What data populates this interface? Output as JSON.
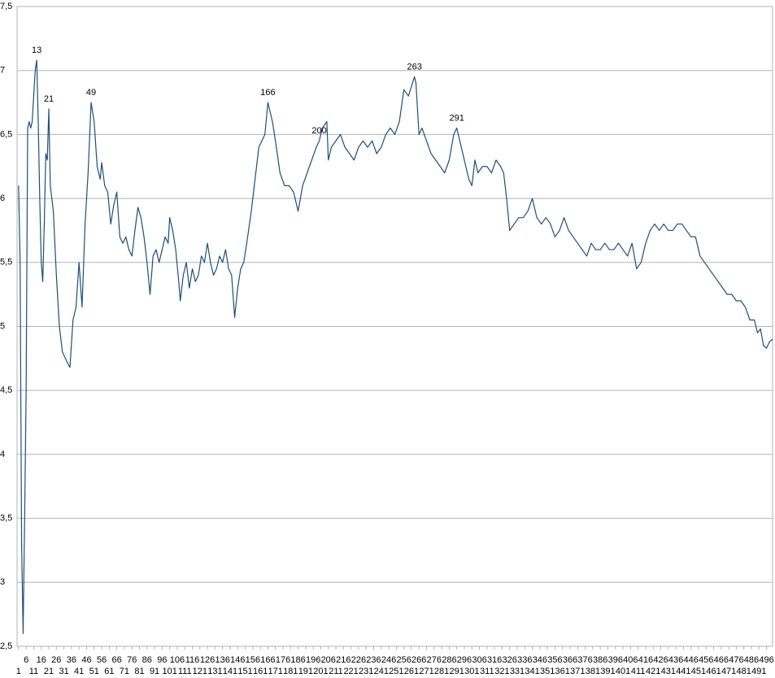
{
  "chart_data": {
    "type": "line",
    "color": "#1f4e79",
    "grid": true,
    "xlim": [
      0,
      500
    ],
    "ylim": [
      2.5,
      7.5
    ],
    "yticks": [
      {
        "value": 2.5,
        "label": "2,5"
      },
      3,
      {
        "value": 3.5,
        "label": "3,5"
      },
      4,
      {
        "value": 4.5,
        "label": "4,5"
      },
      5,
      {
        "value": 5.5,
        "label": "5,5"
      },
      6,
      {
        "value": 6.5,
        "label": "6,5"
      },
      7,
      {
        "value": 7.5,
        "label": "7,5"
      }
    ],
    "xticks": [
      1,
      6,
      11,
      16,
      21,
      26,
      31,
      36,
      41,
      46,
      51,
      56,
      61,
      66,
      71,
      76,
      81,
      86,
      91,
      96,
      101,
      106,
      111,
      116,
      121,
      126,
      131,
      136,
      141,
      146,
      151,
      156,
      161,
      166,
      171,
      176,
      181,
      186,
      191,
      196,
      201,
      206,
      211,
      216,
      221,
      226,
      231,
      236,
      241,
      246,
      251,
      256,
      261,
      266,
      271,
      276,
      281,
      286,
      291,
      296,
      301,
      306,
      311,
      316,
      321,
      326,
      331,
      336,
      341,
      346,
      351,
      356,
      361,
      366,
      371,
      376,
      381,
      386,
      391,
      396,
      401,
      406,
      411,
      416,
      421,
      426,
      431,
      436,
      441,
      446,
      451,
      456,
      461,
      466,
      471,
      476,
      481,
      486,
      491,
      496
    ],
    "x": [
      1,
      2,
      3,
      4,
      5,
      6,
      7,
      8,
      9,
      10,
      11,
      12,
      13,
      14,
      15,
      16,
      17,
      18,
      19,
      20,
      21,
      22,
      24,
      26,
      28,
      30,
      32,
      34,
      35,
      37,
      39,
      41,
      43,
      45,
      47,
      49,
      51,
      53,
      55,
      56,
      58,
      60,
      62,
      64,
      66,
      68,
      70,
      72,
      74,
      76,
      78,
      80,
      82,
      84,
      86,
      88,
      90,
      92,
      94,
      96,
      98,
      100,
      101,
      103,
      105,
      107,
      108,
      110,
      112,
      114,
      116,
      118,
      120,
      122,
      124,
      126,
      128,
      130,
      132,
      134,
      136,
      138,
      140,
      142,
      144,
      146,
      148,
      150,
      152,
      155,
      158,
      160,
      162,
      164,
      166,
      169,
      171,
      174,
      177,
      180,
      183,
      186,
      189,
      192,
      195,
      198,
      200,
      202,
      205,
      206,
      208,
      211,
      214,
      217,
      220,
      223,
      226,
      229,
      232,
      235,
      238,
      241,
      244,
      247,
      250,
      253,
      256,
      259,
      263,
      264,
      266,
      268,
      271,
      274,
      277,
      280,
      283,
      286,
      289,
      291,
      293,
      296,
      299,
      301,
      303,
      305,
      308,
      311,
      314,
      317,
      320,
      322,
      324,
      326,
      329,
      332,
      335,
      338,
      341,
      344,
      347,
      350,
      353,
      356,
      359,
      362,
      365,
      368,
      371,
      374,
      377,
      380,
      383,
      386,
      389,
      392,
      395,
      398,
      401,
      404,
      407,
      410,
      413,
      416,
      419,
      422,
      425,
      428,
      431,
      434,
      437,
      440,
      443,
      446,
      449,
      452,
      455,
      458,
      461,
      464,
      467,
      470,
      473,
      476,
      479,
      482,
      485,
      488,
      490,
      492,
      494,
      496,
      498,
      500
    ],
    "values": [
      6.1,
      5.5,
      3.3,
      2.6,
      3.5,
      4.5,
      6.55,
      6.6,
      6.55,
      6.6,
      6.8,
      7.0,
      7.08,
      6.6,
      6.0,
      5.5,
      5.35,
      5.8,
      6.35,
      6.3,
      6.7,
      6.1,
      5.9,
      5.4,
      5.0,
      4.8,
      4.75,
      4.7,
      4.68,
      5.05,
      5.15,
      5.5,
      5.15,
      5.8,
      6.2,
      6.75,
      6.6,
      6.25,
      6.15,
      6.28,
      6.1,
      6.05,
      5.8,
      5.95,
      6.05,
      5.7,
      5.65,
      5.7,
      5.6,
      5.55,
      5.75,
      5.93,
      5.85,
      5.7,
      5.5,
      5.25,
      5.55,
      5.6,
      5.5,
      5.6,
      5.7,
      5.65,
      5.85,
      5.75,
      5.6,
      5.35,
      5.2,
      5.4,
      5.5,
      5.3,
      5.45,
      5.35,
      5.4,
      5.55,
      5.5,
      5.65,
      5.5,
      5.4,
      5.45,
      5.55,
      5.5,
      5.6,
      5.45,
      5.4,
      5.07,
      5.3,
      5.45,
      5.5,
      5.65,
      5.9,
      6.2,
      6.4,
      6.45,
      6.5,
      6.75,
      6.6,
      6.45,
      6.2,
      6.1,
      6.1,
      6.05,
      5.9,
      6.1,
      6.2,
      6.3,
      6.4,
      6.45,
      6.55,
      6.6,
      6.3,
      6.4,
      6.45,
      6.5,
      6.4,
      6.35,
      6.3,
      6.4,
      6.45,
      6.4,
      6.45,
      6.35,
      6.4,
      6.5,
      6.55,
      6.5,
      6.6,
      6.85,
      6.8,
      6.95,
      6.9,
      6.5,
      6.55,
      6.45,
      6.35,
      6.3,
      6.25,
      6.2,
      6.3,
      6.5,
      6.55,
      6.45,
      6.3,
      6.15,
      6.1,
      6.3,
      6.2,
      6.25,
      6.25,
      6.2,
      6.3,
      6.25,
      6.2,
      6.0,
      5.75,
      5.8,
      5.85,
      5.85,
      5.9,
      6.0,
      5.85,
      5.8,
      5.85,
      5.8,
      5.7,
      5.75,
      5.85,
      5.75,
      5.7,
      5.65,
      5.6,
      5.55,
      5.65,
      5.6,
      5.6,
      5.65,
      5.6,
      5.6,
      5.65,
      5.6,
      5.55,
      5.65,
      5.45,
      5.5,
      5.65,
      5.75,
      5.8,
      5.75,
      5.8,
      5.75,
      5.75,
      5.8,
      5.8,
      5.75,
      5.7,
      5.7,
      5.55,
      5.5,
      5.45,
      5.4,
      5.35,
      5.3,
      5.25,
      5.25,
      5.2,
      5.2,
      5.15,
      5.05,
      5.05,
      4.95,
      4.98,
      4.85,
      4.83,
      4.88,
      4.9
    ],
    "annotations": [
      {
        "x": 13,
        "text": "13"
      },
      {
        "x": 21,
        "text": "21"
      },
      {
        "x": 49,
        "text": "49"
      },
      {
        "x": 166,
        "text": "166"
      },
      {
        "x": 200,
        "text": "200"
      },
      {
        "x": 263,
        "text": "263"
      },
      {
        "x": 291,
        "text": "291"
      }
    ]
  }
}
